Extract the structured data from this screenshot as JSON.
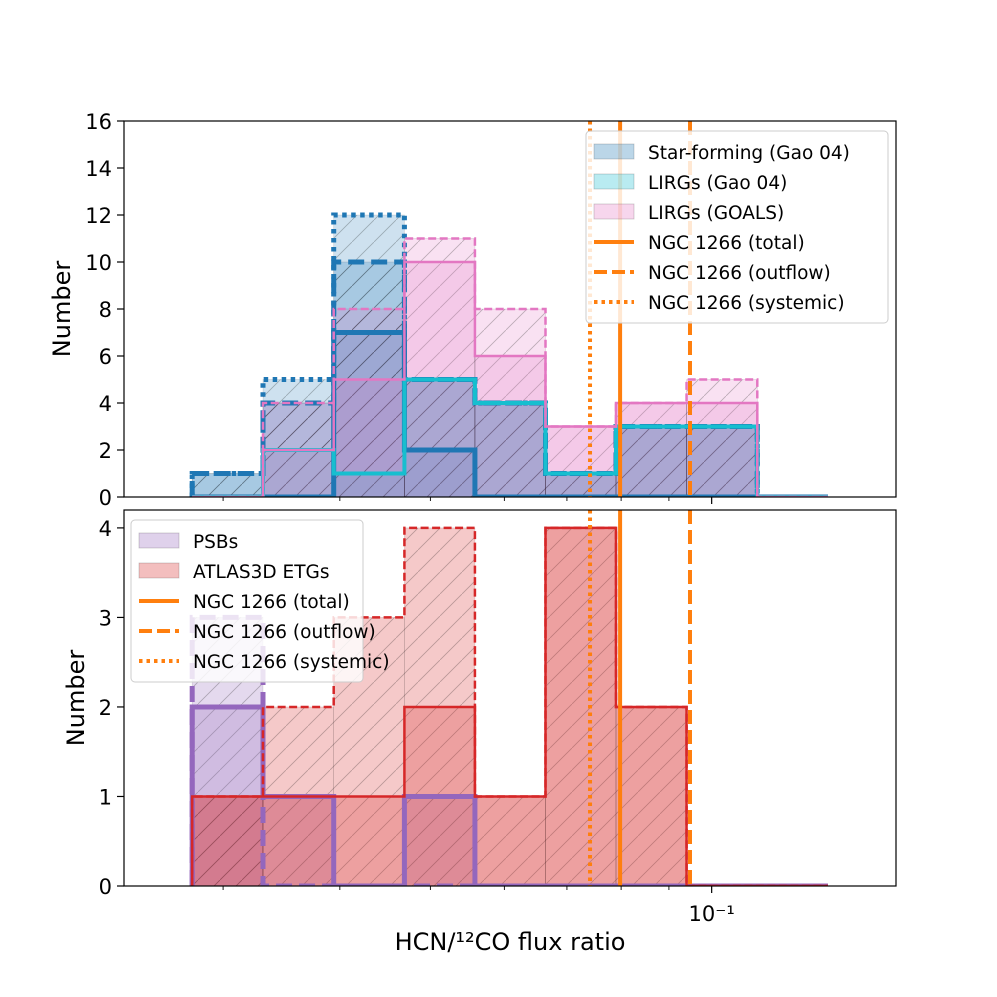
{
  "chart_data": [
    {
      "type": "histogram",
      "panel": "top",
      "xscale": "log",
      "ylabel": "Number",
      "ylim": [
        0,
        16
      ],
      "yticks": [
        0,
        2,
        4,
        6,
        8,
        10,
        12,
        14,
        16
      ],
      "bin_edges": [
        0.0278,
        0.0331,
        0.0394,
        0.0469,
        0.0558,
        0.0664,
        0.079,
        0.094,
        0.1119,
        0.1332
      ],
      "series": [
        {
          "name": "Star-forming (Gao 04)",
          "group": "sf",
          "style": "dotted",
          "color": "#1f77b4",
          "values": [
            1,
            5,
            12,
            5,
            4,
            1,
            3,
            3,
            0
          ]
        },
        {
          "name": "",
          "group": "sf",
          "style": "dashed",
          "color": "#1f77b4",
          "values": [
            1,
            4,
            10,
            5,
            4,
            1,
            3,
            3,
            0
          ]
        },
        {
          "name": "",
          "group": "sf",
          "style": "solid",
          "color": "#1f77b4",
          "values": [
            0,
            0,
            7,
            2,
            0,
            0,
            0,
            0,
            0
          ]
        },
        {
          "name": "LIRGs (Gao 04)",
          "group": "lirg",
          "style": "solid",
          "color": "#17becf",
          "values": [
            0,
            2,
            1,
            5,
            4,
            1,
            3,
            3,
            0
          ]
        },
        {
          "name": "LIRGs (GOALS)",
          "group": "goals",
          "style": "dashed",
          "color": "#e377c2",
          "values": [
            0,
            4,
            8,
            11,
            8,
            3,
            4,
            5,
            0
          ]
        },
        {
          "name": "",
          "group": "goals",
          "style": "solid",
          "color": "#e377c2",
          "values": [
            0,
            2,
            5,
            10,
            6,
            3,
            4,
            4,
            0
          ]
        }
      ],
      "vlines": [
        {
          "name": "NGC 1266 (total)",
          "x": 0.0798,
          "style": "solid",
          "color": "#ff7f0e"
        },
        {
          "name": "NGC 1266 (outflow)",
          "x": 0.0948,
          "style": "dashed",
          "color": "#ff7f0e"
        },
        {
          "name": "NGC 1266 (systemic)",
          "x": 0.0741,
          "style": "dotted",
          "color": "#ff7f0e"
        }
      ],
      "legend": "top-right"
    },
    {
      "type": "histogram",
      "panel": "bottom",
      "xscale": "log",
      "xlabel": "HCN/¹²CO flux ratio",
      "ylabel": "Number",
      "ylim": [
        0,
        4.2
      ],
      "yticks": [
        0,
        1,
        2,
        3,
        4
      ],
      "xticks": [
        {
          "value": 0.1,
          "label": "10⁻¹"
        }
      ],
      "bin_edges": [
        0.0278,
        0.0331,
        0.0394,
        0.0469,
        0.0558,
        0.0664,
        0.079,
        0.094,
        0.1119,
        0.1332
      ],
      "series": [
        {
          "name": "PSBs",
          "group": "psb",
          "style": "dashed",
          "color": "#9467bd",
          "values": [
            3,
            0,
            0,
            0,
            0,
            0,
            0,
            0,
            0
          ]
        },
        {
          "name": "",
          "group": "psb",
          "style": "solid",
          "color": "#9467bd",
          "values": [
            2,
            1,
            0,
            1,
            0,
            0,
            0,
            0,
            0
          ]
        },
        {
          "name": "ATLAS3D ETGs",
          "group": "etg",
          "style": "dashed",
          "color": "#d62728",
          "values": [
            1,
            2,
            3,
            4,
            1,
            4,
            2,
            0,
            0
          ]
        },
        {
          "name": "",
          "group": "etg",
          "style": "solid",
          "color": "#d62728",
          "values": [
            1,
            1,
            1,
            2,
            1,
            4,
            2,
            0,
            0
          ]
        }
      ],
      "vlines": [
        {
          "name": "NGC 1266 (total)",
          "x": 0.0798,
          "style": "solid",
          "color": "#ff7f0e"
        },
        {
          "name": "NGC 1266 (outflow)",
          "x": 0.0948,
          "style": "dashed",
          "color": "#ff7f0e"
        },
        {
          "name": "NGC 1266 (systemic)",
          "x": 0.0741,
          "style": "dotted",
          "color": "#ff7f0e"
        }
      ],
      "legend": "upper-left"
    }
  ]
}
